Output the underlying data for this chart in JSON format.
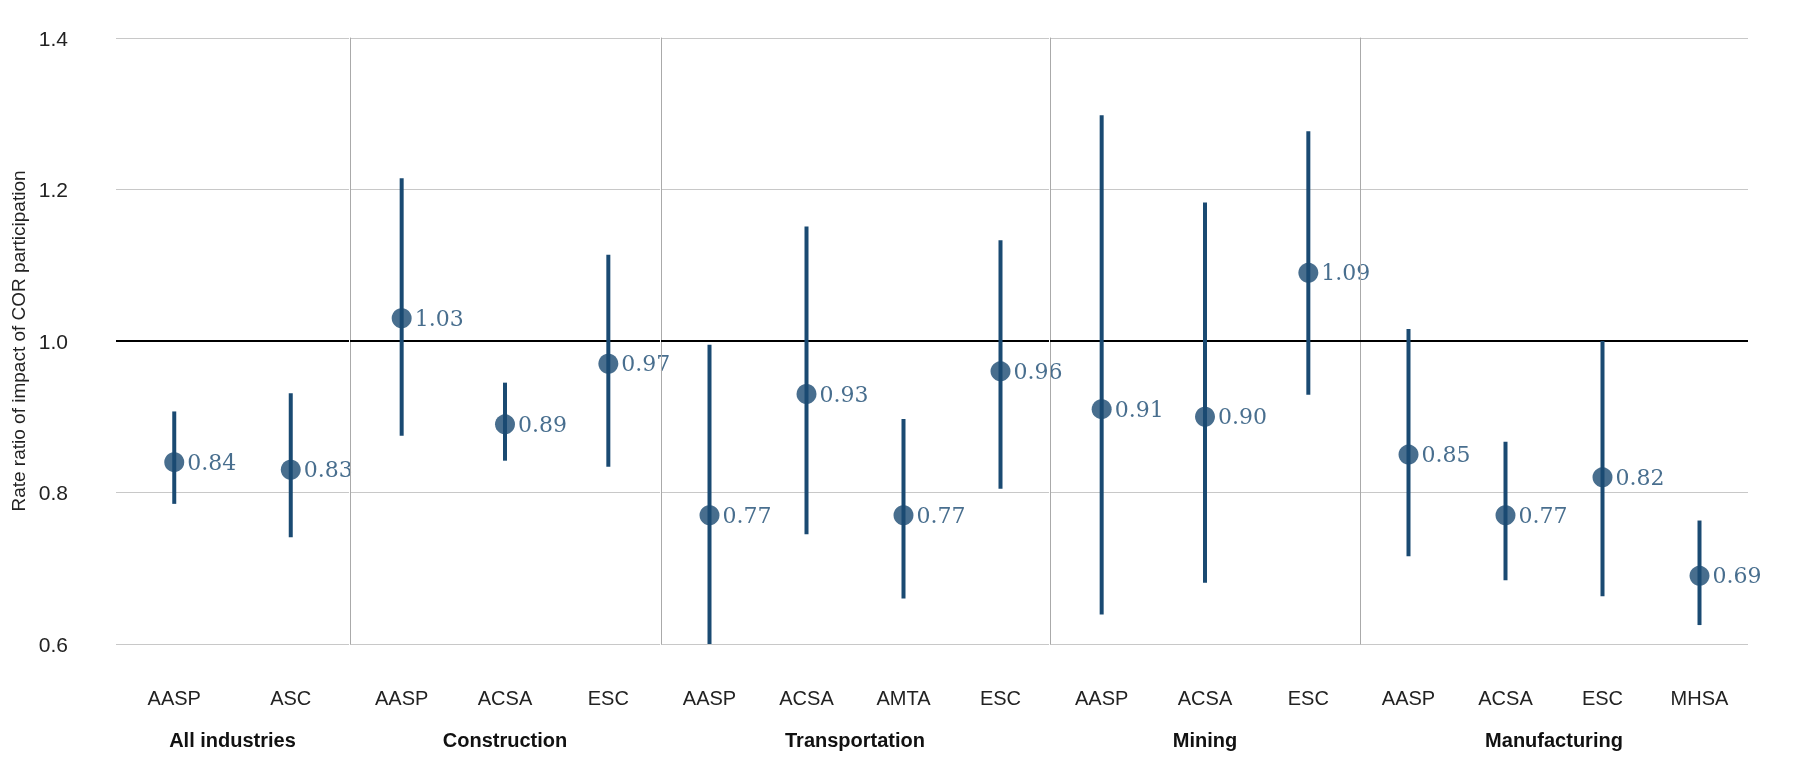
{
  "chart_data": [
    {
      "type": "scatter",
      "ylabel": "Rate ratio of impact of COR participation",
      "xlabel": "All industries",
      "categories": [
        "AASP",
        "ASC"
      ],
      "values": [
        0.84,
        0.83
      ],
      "value_labels": [
        "0.84",
        "0.83"
      ],
      "errors": [
        [
          0.785,
          0.907
        ],
        [
          0.741,
          0.931
        ]
      ],
      "color": "#1a4a72",
      "marker": "circle",
      "ylim": [
        0.6,
        1.4
      ],
      "yticks": [
        {
          "value": 0.6,
          "label": "0.6"
        },
        {
          "value": 0.8,
          "label": "0.8"
        },
        {
          "value": 1.0,
          "label": "1.0"
        },
        {
          "value": 1.2,
          "label": "1.2"
        },
        {
          "value": 1.4,
          "label": "1.4"
        }
      ],
      "grid": "y",
      "ref_lines": [
        {
          "axis": "y",
          "value": 1.0,
          "color": "#000000"
        }
      ]
    },
    {
      "type": "scatter",
      "xlabel": "Construction",
      "categories": [
        "AASP",
        "ACSA",
        "ESC"
      ],
      "values": [
        1.03,
        0.89,
        0.97
      ],
      "value_labels": [
        "1.03",
        "0.89",
        "0.97"
      ],
      "errors": [
        [
          0.875,
          1.215
        ],
        [
          0.842,
          0.945
        ],
        [
          0.834,
          1.114
        ]
      ],
      "color": "#1a4a72",
      "marker": "circle",
      "ylim": [
        0.6,
        1.4
      ],
      "yticks": [
        0.6,
        0.8,
        1.0,
        1.2,
        1.4
      ],
      "grid": "y",
      "tick_labels": "x",
      "ref_lines": [
        {
          "axis": "y",
          "value": 1.0,
          "color": "#000000"
        }
      ]
    },
    {
      "type": "scatter",
      "xlabel": "Transportation",
      "categories": [
        "AASP",
        "ACSA",
        "AMTA",
        "ESC"
      ],
      "values": [
        0.77,
        0.93,
        0.77,
        0.96
      ],
      "value_labels": [
        "0.77",
        "0.93",
        "0.77",
        "0.96"
      ],
      "errors": [
        [
          0.6,
          0.995
        ],
        [
          0.745,
          1.151
        ],
        [
          0.66,
          0.897
        ],
        [
          0.805,
          1.133
        ]
      ],
      "color": "#1a4a72",
      "marker": "circle",
      "ylim": [
        0.6,
        1.4
      ],
      "yticks": [
        0.6,
        0.8,
        1.0,
        1.2,
        1.4
      ],
      "grid": "y",
      "tick_labels": "x",
      "ref_lines": [
        {
          "axis": "y",
          "value": 1.0,
          "color": "#000000"
        }
      ]
    },
    {
      "type": "scatter",
      "xlabel": "Mining",
      "categories": [
        "AASP",
        "ACSA",
        "ESC"
      ],
      "values": [
        0.91,
        0.9,
        1.09
      ],
      "value_labels": [
        "0.91",
        "0.90",
        "1.09"
      ],
      "errors": [
        [
          0.639,
          1.298
        ],
        [
          0.681,
          1.183
        ],
        [
          0.929,
          1.277
        ]
      ],
      "color": "#1a4a72",
      "marker": "circle",
      "ylim": [
        0.6,
        1.4
      ],
      "yticks": [
        0.6,
        0.8,
        1.0,
        1.2,
        1.4
      ],
      "grid": "y",
      "tick_labels": "x",
      "ref_lines": [
        {
          "axis": "y",
          "value": 1.0,
          "color": "#000000"
        }
      ]
    },
    {
      "type": "scatter",
      "xlabel": "Manufacturing",
      "categories": [
        "AASP",
        "ACSA",
        "ESC",
        "MHSA"
      ],
      "values": [
        0.85,
        0.77,
        0.82,
        0.69
      ],
      "value_labels": [
        "0.85",
        "0.77",
        "0.82",
        "0.69"
      ],
      "errors": [
        [
          0.716,
          1.016
        ],
        [
          0.684,
          0.867
        ],
        [
          0.663,
          1.0
        ],
        [
          0.625,
          0.763
        ]
      ],
      "color": "#1a4a72",
      "marker": "circle",
      "ylim": [
        0.6,
        1.4
      ],
      "yticks": [
        0.6,
        0.8,
        1.0,
        1.2,
        1.4
      ],
      "grid": "y",
      "tick_labels": "x",
      "ref_lines": [
        {
          "axis": "y",
          "value": 1.0,
          "color": "#000000"
        }
      ]
    }
  ]
}
